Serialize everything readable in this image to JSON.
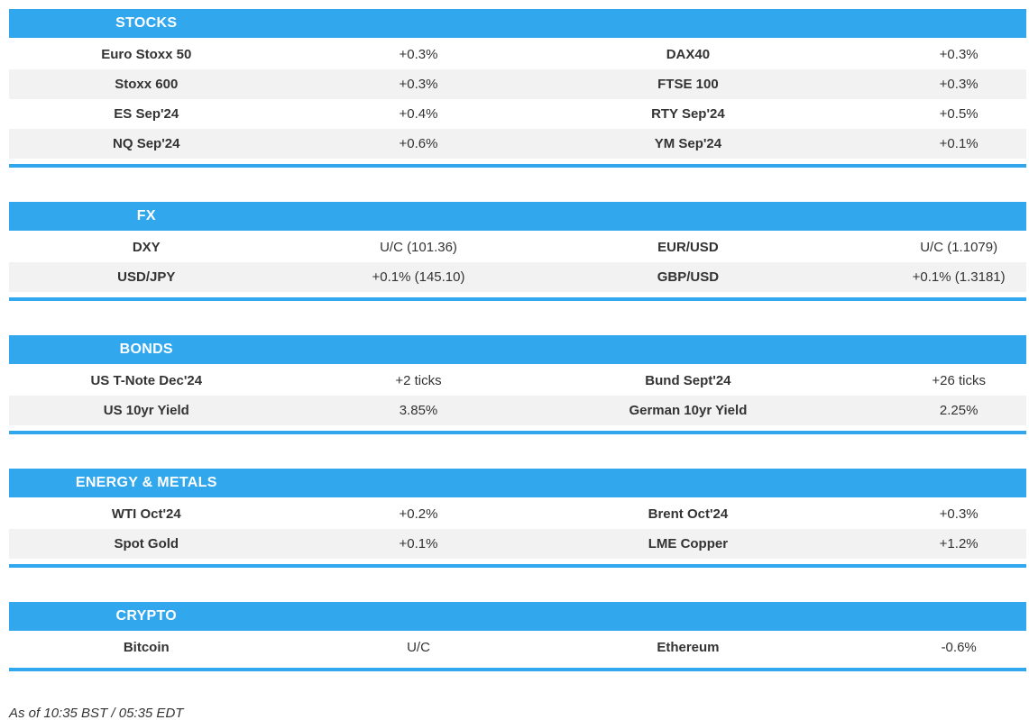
{
  "colors": {
    "accent": "#31A7EE",
    "stripe": "#F2F2F2",
    "text": "#333333",
    "header_text": "#FFFFFF"
  },
  "sections": [
    {
      "title": "STOCKS",
      "rows": [
        {
          "l1": "Euro Stoxx 50",
          "v1": "+0.3%",
          "l2": "DAX40",
          "v2": "+0.3%"
        },
        {
          "l1": "Stoxx 600",
          "v1": "+0.3%",
          "l2": "FTSE 100",
          "v2": "+0.3%"
        },
        {
          "l1": "ES Sep'24",
          "v1": "+0.4%",
          "l2": "RTY Sep'24",
          "v2": "+0.5%"
        },
        {
          "l1": "NQ Sep'24",
          "v1": "+0.6%",
          "l2": "YM Sep'24",
          "v2": "+0.1%"
        }
      ]
    },
    {
      "title": "FX",
      "rows": [
        {
          "l1": "DXY",
          "v1": "U/C (101.36)",
          "l2": "EUR/USD",
          "v2": "U/C (1.1079)"
        },
        {
          "l1": "USD/JPY",
          "v1": "+0.1% (145.10)",
          "l2": "GBP/USD",
          "v2": "+0.1% (1.3181)"
        }
      ]
    },
    {
      "title": "BONDS",
      "rows": [
        {
          "l1": "US T-Note Dec'24",
          "v1": "+2 ticks",
          "l2": "Bund Sept'24",
          "v2": "+26 ticks"
        },
        {
          "l1": "US 10yr Yield",
          "v1": "3.85%",
          "l2": "German 10yr Yield",
          "v2": "2.25%"
        }
      ]
    },
    {
      "title": "ENERGY & METALS",
      "rows": [
        {
          "l1": "WTI Oct'24",
          "v1": "+0.2%",
          "l2": "Brent Oct'24",
          "v2": "+0.3%"
        },
        {
          "l1": "Spot Gold",
          "v1": "+0.1%",
          "l2": "LME Copper",
          "v2": "+1.2%"
        }
      ]
    },
    {
      "title": "CRYPTO",
      "rows": [
        {
          "l1": "Bitcoin",
          "v1": "U/C",
          "l2": "Ethereum",
          "v2": "-0.6%"
        }
      ]
    }
  ],
  "footer": {
    "as_of": "As of 10:35 BST / 05:35 EDT"
  }
}
